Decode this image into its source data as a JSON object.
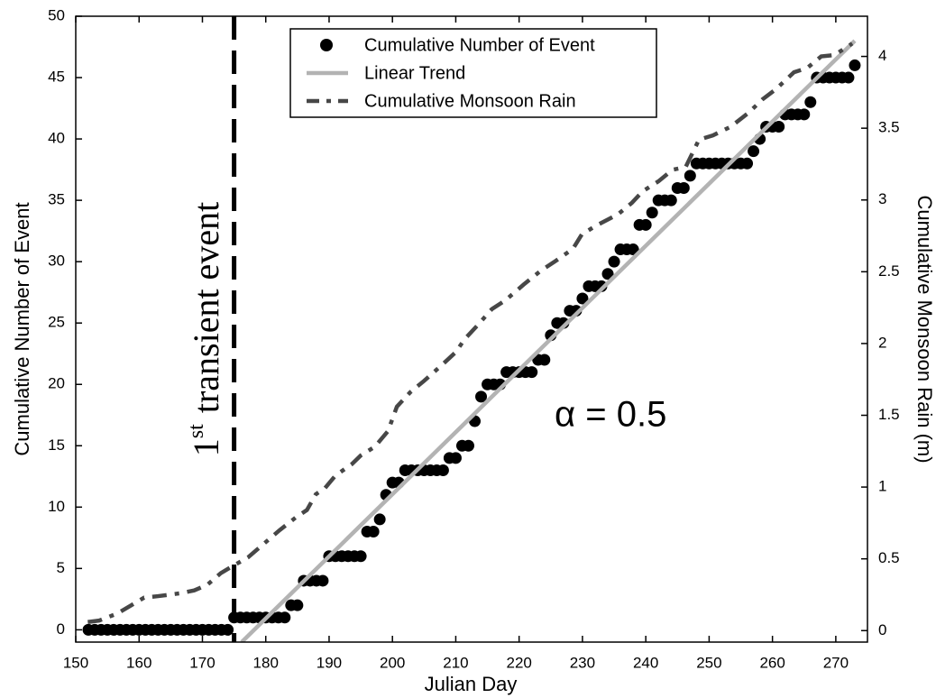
{
  "chart_data": {
    "type": "line",
    "xlabel": "Julian Day",
    "ylabel": "Cumulative Number of Event",
    "y2label": "Cumulative Monsoon Rain (m)",
    "xlim": [
      150,
      275
    ],
    "xticks": [
      150,
      160,
      170,
      180,
      190,
      200,
      210,
      220,
      230,
      240,
      250,
      260,
      270
    ],
    "ylim": [
      -1,
      50
    ],
    "yticks": [
      0,
      5,
      10,
      15,
      20,
      25,
      30,
      35,
      40,
      45,
      50
    ],
    "y2lim": [
      -0.08,
      4.28
    ],
    "y2ticks": [
      0,
      0.5,
      1,
      1.5,
      2,
      2.5,
      3,
      3.5,
      4
    ],
    "legend": "upper center",
    "annotations": {
      "event_day": 175,
      "event_label": {
        "number": "1",
        "superscript": "st",
        "text": "transient event"
      },
      "alpha": "α = 0.5"
    },
    "series": [
      {
        "name": "Cumulative Number of Event",
        "color": "#000000",
        "marker": "circle",
        "axis": "y",
        "x": [
          152,
          153,
          154,
          155,
          156,
          157,
          158,
          159,
          160,
          161,
          162,
          163,
          164,
          165,
          166,
          167,
          168,
          169,
          170,
          171,
          172,
          173,
          174,
          175,
          176,
          177,
          178,
          179,
          180,
          181,
          182,
          183,
          184,
          185,
          186,
          187,
          188,
          189,
          190,
          191,
          192,
          193,
          194,
          195,
          196,
          197,
          198,
          199,
          200,
          201,
          202,
          203,
          204,
          205,
          206,
          207,
          208,
          209,
          210,
          211,
          212,
          213,
          214,
          215,
          216,
          217,
          218,
          219,
          220,
          221,
          222,
          223,
          224,
          225,
          226,
          227,
          228,
          229,
          230,
          231,
          232,
          233,
          234,
          235,
          236,
          237,
          238,
          239,
          240,
          241,
          242,
          243,
          244,
          245,
          246,
          247,
          248,
          249,
          250,
          251,
          252,
          253,
          254,
          255,
          256,
          257,
          258,
          259,
          260,
          261,
          262,
          263,
          264,
          265,
          266,
          267,
          268,
          269,
          270,
          271,
          272,
          273
        ],
        "values": [
          0,
          0,
          0,
          0,
          0,
          0,
          0,
          0,
          0,
          0,
          0,
          0,
          0,
          0,
          0,
          0,
          0,
          0,
          0,
          0,
          0,
          0,
          0,
          1,
          1,
          1,
          1,
          1,
          1,
          1,
          1,
          1,
          2,
          2,
          4,
          4,
          4,
          4,
          6,
          6,
          6,
          6,
          6,
          6,
          8,
          8,
          9,
          11,
          12,
          12,
          13,
          13,
          13,
          13,
          13,
          13,
          13,
          14,
          14,
          15,
          15,
          17,
          19,
          20,
          20,
          20,
          21,
          21,
          21,
          21,
          21,
          22,
          22,
          24,
          25,
          25,
          26,
          26,
          27,
          28,
          28,
          28,
          29,
          30,
          31,
          31,
          31,
          33,
          33,
          34,
          35,
          35,
          35,
          36,
          36,
          37,
          38,
          38,
          38,
          38,
          38,
          38,
          38,
          38,
          38,
          39,
          40,
          41,
          41,
          41,
          42,
          42,
          42,
          42,
          43,
          45,
          45,
          45,
          45,
          45,
          45,
          46
        ]
      },
      {
        "name": "Linear Trend",
        "color": "#b3b3b3",
        "marker": "line",
        "axis": "y",
        "x": [
          176.2,
          273
        ],
        "values": [
          -1,
          48
        ]
      },
      {
        "name": "Cumulative Monsoon Rain",
        "color": "#474747",
        "marker": "dashdot",
        "axis": "y2",
        "x": [
          151.9,
          153.7,
          156.6,
          160.8,
          163.0,
          166.5,
          168.7,
          170.8,
          172.9,
          174.8,
          177.2,
          179.3,
          182.2,
          184.8,
          186.5,
          187.9,
          189.3,
          191.0,
          193.6,
          195.0,
          197.2,
          199.3,
          200.7,
          202.8,
          205.0,
          207.8,
          210.0,
          211.4,
          213.5,
          215.7,
          217.8,
          220.7,
          223.5,
          225.6,
          228.5,
          229.9,
          232.1,
          235.6,
          237.8,
          239.5,
          242.0,
          244.2,
          246.3,
          248.4,
          250.6,
          253.4,
          256.3,
          258.4,
          260.5,
          263.4,
          265.5,
          267.7,
          269.8,
          272.6
        ],
        "values": [
          0.06,
          0.07,
          0.12,
          0.23,
          0.24,
          0.26,
          0.28,
          0.32,
          0.4,
          0.45,
          0.51,
          0.59,
          0.7,
          0.79,
          0.84,
          0.95,
          0.99,
          1.08,
          1.16,
          1.22,
          1.28,
          1.39,
          1.56,
          1.66,
          1.74,
          1.85,
          1.94,
          2.03,
          2.13,
          2.24,
          2.3,
          2.41,
          2.51,
          2.57,
          2.66,
          2.76,
          2.82,
          2.9,
          2.98,
          3.06,
          3.13,
          3.21,
          3.23,
          3.42,
          3.45,
          3.51,
          3.61,
          3.7,
          3.77,
          3.89,
          3.92,
          4.0,
          4.01,
          4.09
        ]
      }
    ]
  }
}
